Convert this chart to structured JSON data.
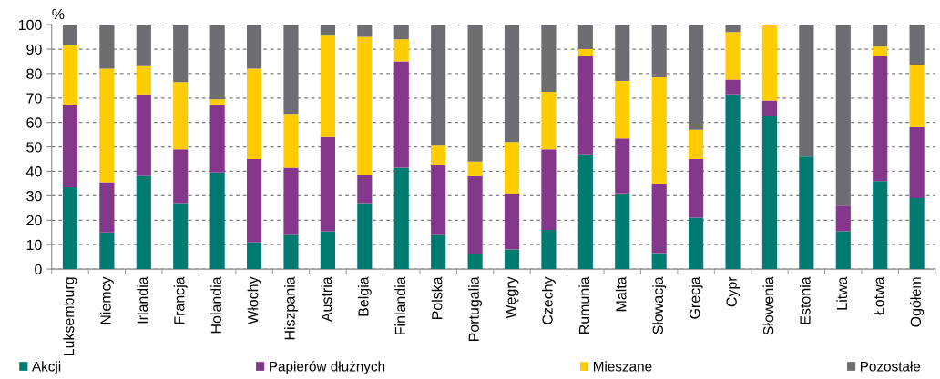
{
  "chart_data": {
    "type": "bar",
    "stacked": true,
    "ylabel": "%",
    "ylim": [
      0,
      100
    ],
    "yticks": [
      0,
      10,
      20,
      30,
      40,
      50,
      60,
      70,
      80,
      90,
      100
    ],
    "grid": "y",
    "legend": "bottom",
    "categories": [
      "Luksemburg",
      "Niemcy",
      "Irlandia",
      "Francja",
      "Holandia",
      "Włochy",
      "Hiszpania",
      "Austria",
      "Belgia",
      "Finlandia",
      "Polska",
      "Portugalia",
      "Węgry",
      "Czechy",
      "Rumunia",
      "Malta",
      "Słowacja",
      "Grecja",
      "Cypr",
      "Słowenia",
      "Estonia",
      "Litwa",
      "Łotwa",
      "Ogółem"
    ],
    "series": [
      {
        "name": "Akcji",
        "color": "#007b72",
        "values": [
          33.5,
          15,
          38,
          27,
          39.5,
          11,
          14,
          15.5,
          27,
          41.5,
          14,
          6,
          8,
          16,
          47,
          31,
          6.5,
          21,
          71.5,
          62.5,
          46,
          15.5,
          36,
          29
        ]
      },
      {
        "name": "Papierów dłużnych",
        "color": "#84378b",
        "values": [
          33.5,
          20.5,
          33.5,
          22,
          27.5,
          34,
          27.5,
          38.5,
          11.5,
          43.5,
          28.5,
          32,
          23,
          33,
          40,
          22.5,
          28.5,
          24,
          6,
          6.5,
          0,
          10.5,
          51,
          29
        ]
      },
      {
        "name": "Mieszane",
        "color": "#ffcc00",
        "values": [
          24.5,
          46.5,
          11.5,
          27.5,
          2.5,
          37,
          22,
          41.5,
          56.5,
          9,
          8,
          6,
          21,
          23.5,
          3,
          23.5,
          43.5,
          12,
          19.5,
          31,
          0,
          0,
          4,
          25.5
        ]
      },
      {
        "name": "Pozostałe",
        "color": "#6e6e72",
        "values": [
          8.5,
          18,
          17,
          23.5,
          30.5,
          18,
          36.5,
          4.5,
          5,
          6,
          49.5,
          56,
          48,
          27.5,
          10,
          23,
          21.5,
          43,
          3,
          0,
          54,
          74,
          9,
          16.5
        ]
      }
    ]
  }
}
